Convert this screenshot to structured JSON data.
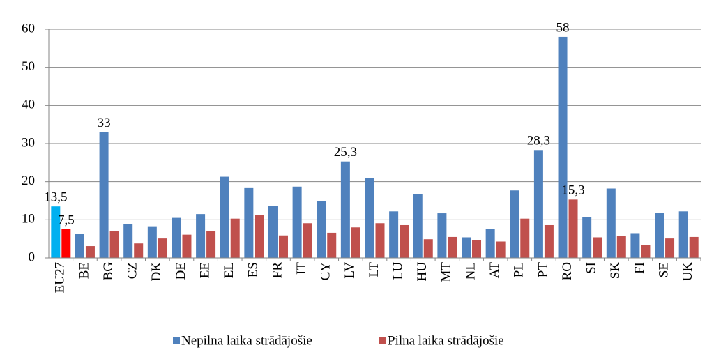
{
  "chart_data": {
    "type": "bar",
    "categories": [
      "EU27",
      "BE",
      "BG",
      "CZ",
      "DK",
      "DE",
      "EE",
      "EL",
      "ES",
      "FR",
      "IT",
      "CY",
      "LV",
      "LT",
      "LU",
      "HU",
      "MT",
      "NL",
      "AT",
      "PL",
      "PT",
      "RO",
      "SI",
      "SK",
      "FI",
      "SE",
      "UK"
    ],
    "series": [
      {
        "name": "Nepilna laika strādājošie",
        "color": "#4f81bd",
        "colors": [
          "#00b0f0",
          "#4f81bd",
          "#4f81bd",
          "#4f81bd",
          "#4f81bd",
          "#4f81bd",
          "#4f81bd",
          "#4f81bd",
          "#4f81bd",
          "#4f81bd",
          "#4f81bd",
          "#4f81bd",
          "#4f81bd",
          "#4f81bd",
          "#4f81bd",
          "#4f81bd",
          "#4f81bd",
          "#4f81bd",
          "#4f81bd",
          "#4f81bd",
          "#4f81bd",
          "#4f81bd",
          "#4f81bd",
          "#4f81bd",
          "#4f81bd",
          "#4f81bd",
          "#4f81bd"
        ],
        "values": [
          13.5,
          6.4,
          33,
          8.8,
          8.3,
          10.5,
          11.5,
          21.3,
          18.5,
          13.7,
          18.7,
          15,
          25.3,
          21,
          12.2,
          16.7,
          11.7,
          5.4,
          7.5,
          17.7,
          28.3,
          58,
          10.7,
          18.2,
          6.5,
          11.8,
          12.2
        ],
        "value_labels": [
          "13,5",
          null,
          "33",
          null,
          null,
          null,
          null,
          null,
          null,
          null,
          null,
          null,
          "25,3",
          null,
          null,
          null,
          null,
          null,
          null,
          null,
          "28,3",
          "58",
          null,
          null,
          null,
          null,
          null
        ]
      },
      {
        "name": "Pilna laika strādājošie",
        "color": "#c0504d",
        "colors": [
          "#ff0000",
          "#c0504d",
          "#c0504d",
          "#c0504d",
          "#c0504d",
          "#c0504d",
          "#c0504d",
          "#c0504d",
          "#c0504d",
          "#c0504d",
          "#c0504d",
          "#c0504d",
          "#c0504d",
          "#c0504d",
          "#c0504d",
          "#c0504d",
          "#c0504d",
          "#c0504d",
          "#c0504d",
          "#c0504d",
          "#c0504d",
          "#c0504d",
          "#c0504d",
          "#c0504d",
          "#c0504d",
          "#c0504d",
          "#c0504d"
        ],
        "values": [
          7.5,
          3.1,
          7,
          3.8,
          5.1,
          6.1,
          7,
          10.3,
          11.2,
          5.9,
          9.1,
          6.6,
          8,
          9.1,
          8.6,
          4.9,
          5.5,
          4.6,
          4.3,
          10.3,
          8.6,
          15.3,
          5.4,
          5.8,
          3.3,
          5.1,
          5.5
        ],
        "value_labels": [
          "7,5",
          null,
          null,
          null,
          null,
          null,
          null,
          null,
          null,
          null,
          null,
          null,
          null,
          null,
          null,
          null,
          null,
          null,
          null,
          null,
          null,
          "15,3",
          null,
          null,
          null,
          null,
          null
        ]
      }
    ],
    "ylim": [
      0,
      60
    ],
    "yticks": [
      0,
      10,
      20,
      30,
      40,
      50,
      60
    ],
    "grid": true,
    "legend": "bottom"
  }
}
